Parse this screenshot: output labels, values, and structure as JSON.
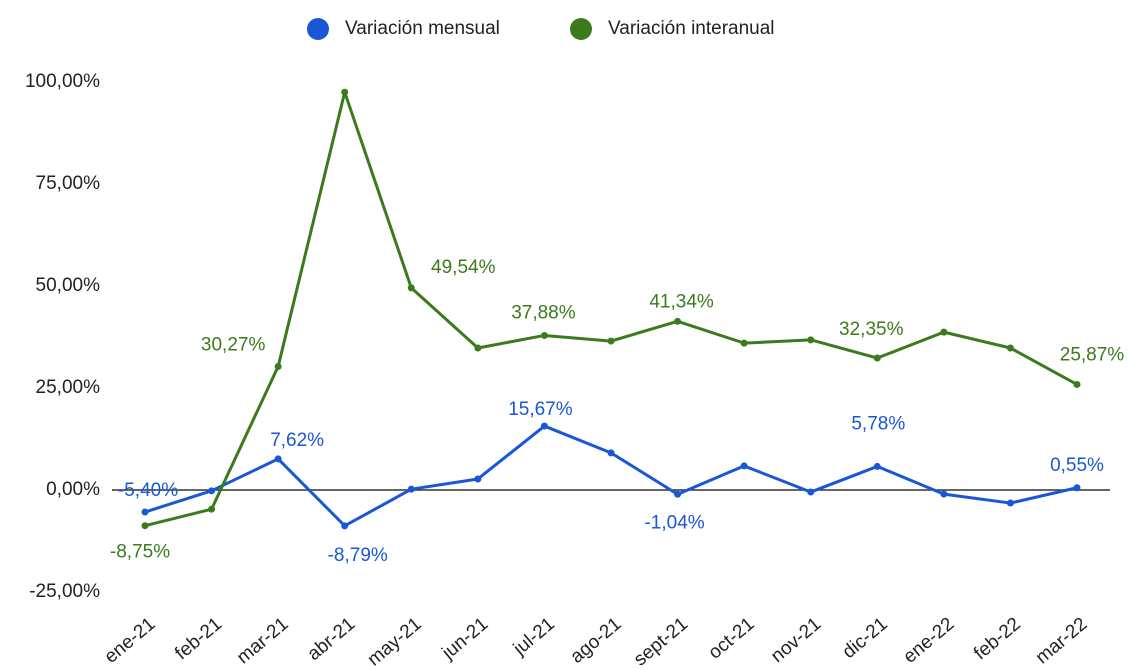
{
  "chart_data": {
    "type": "line",
    "categories": [
      "ene-21",
      "feb-21",
      "mar-21",
      "abr-21",
      "may-21",
      "jun-21",
      "jul-21",
      "ago-21",
      "sept-21",
      "oct-21",
      "nov-21",
      "dic-21",
      "ene-22",
      "feb-22",
      "mar-22"
    ],
    "series": [
      {
        "name": "Variación mensual",
        "color": "#1a56d6",
        "values": [
          -5.4,
          -0.2,
          7.62,
          -8.79,
          0.2,
          2.7,
          15.67,
          9.1,
          -1.04,
          5.9,
          -0.5,
          5.78,
          -1.0,
          -3.2,
          0.55
        ],
        "value_labels": [
          "-5,40%",
          null,
          "7,62%",
          "-8,79%",
          null,
          null,
          "15,67%",
          null,
          "-1,04%",
          null,
          null,
          "5,78%",
          null,
          null,
          "0,55%"
        ]
      },
      {
        "name": "Variación interanual",
        "color": "#3c7a1e",
        "values": [
          -8.75,
          -4.7,
          30.27,
          97.5,
          49.54,
          34.8,
          37.88,
          36.5,
          41.34,
          36.0,
          36.8,
          32.35,
          38.7,
          34.8,
          25.87
        ],
        "value_labels": [
          "-8,75%",
          null,
          "30,27%",
          null,
          "49,54%",
          null,
          "37,88%",
          null,
          "41,34%",
          null,
          null,
          "32,35%",
          null,
          null,
          "25,87%"
        ]
      }
    ],
    "ylim": [
      -25,
      100
    ],
    "yticks": [
      {
        "value": -25,
        "label": "-25,00%"
      },
      {
        "value": 0,
        "label": "0,00%"
      },
      {
        "value": 25,
        "label": "25,00%"
      },
      {
        "value": 50,
        "label": "50,00%"
      },
      {
        "value": 75,
        "label": "75,00%"
      },
      {
        "value": 100,
        "label": "100,00%"
      }
    ],
    "legend": "top"
  }
}
